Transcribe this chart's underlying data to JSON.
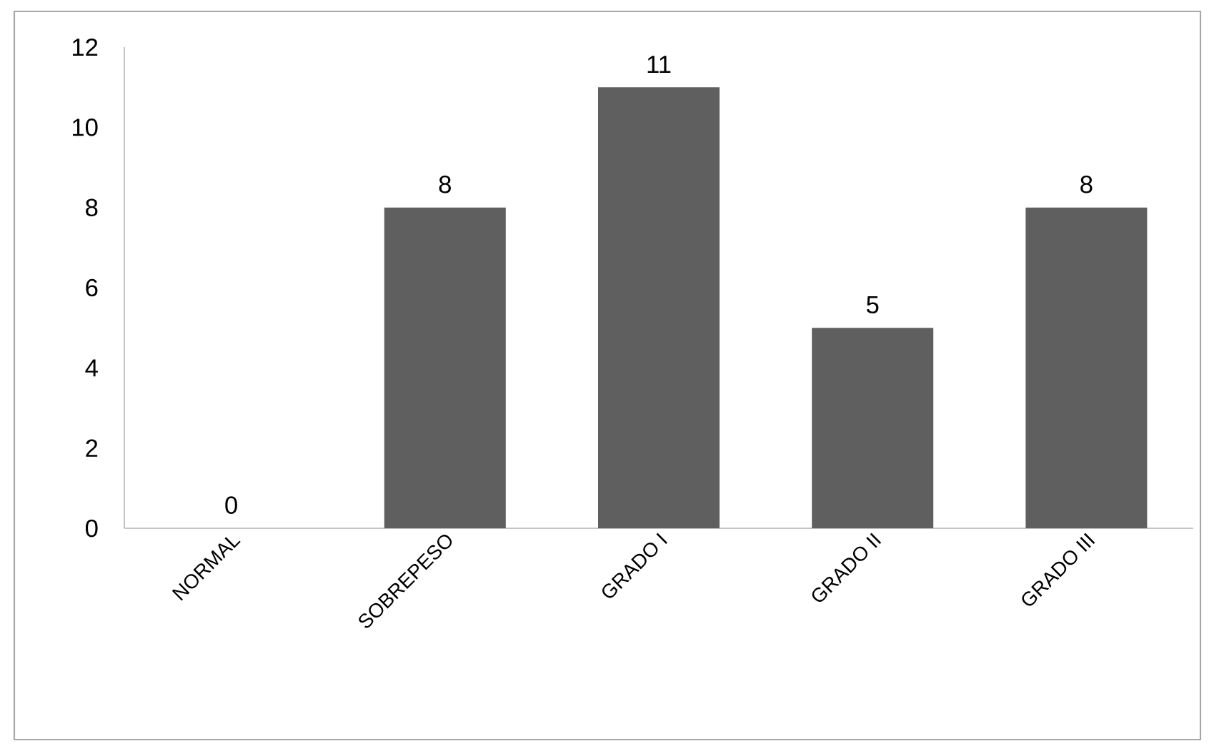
{
  "chart_data": {
    "type": "bar",
    "categories": [
      "NORMAL",
      "SOBREPESO",
      "GRADO I",
      "GRADO II",
      "GRADO III"
    ],
    "values": [
      0,
      8,
      11,
      5,
      8
    ],
    "color": "#5f5f5f",
    "ylim": [
      0,
      12
    ],
    "yticks": [
      0,
      2,
      4,
      6,
      8,
      10,
      12
    ],
    "data_labels": true,
    "grid": false
  }
}
